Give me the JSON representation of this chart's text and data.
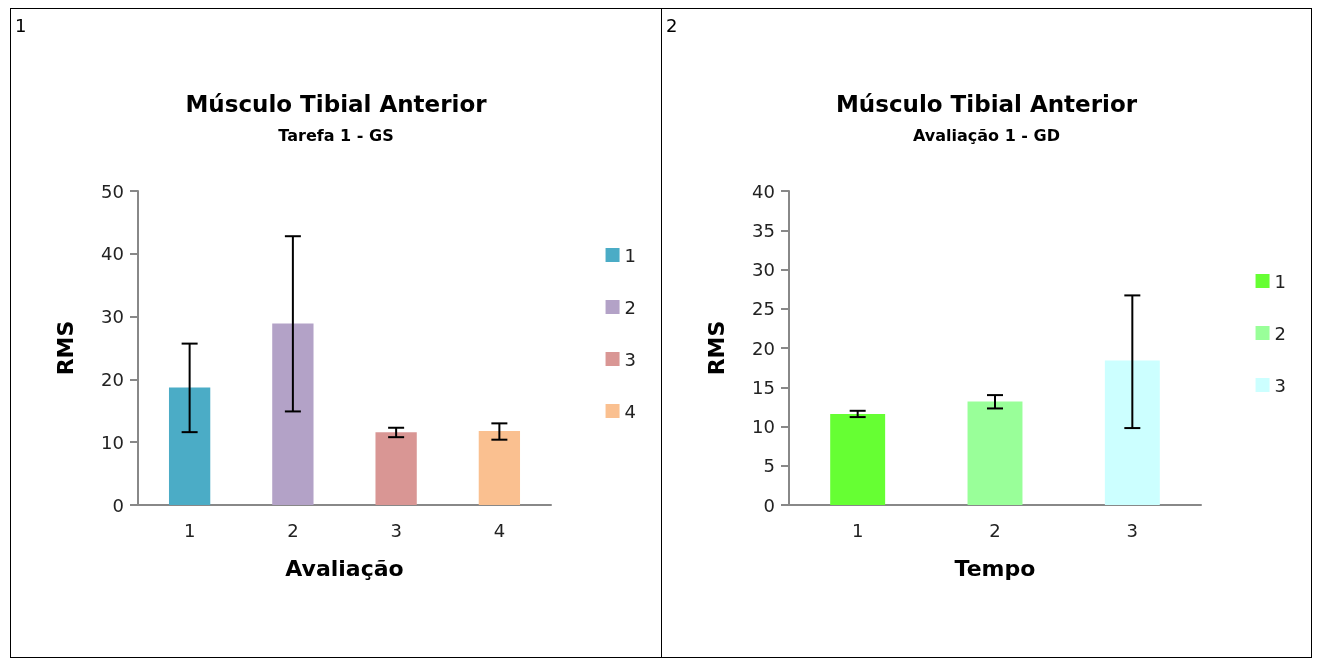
{
  "chart_data": [
    {
      "type": "bar",
      "title": "Músculo Tibial Anterior",
      "subtitle": "Tarefa 1 - GS",
      "xlabel": "Avaliação",
      "ylabel": "RMS",
      "annotations": [
        "1"
      ],
      "categories": [
        "1",
        "2",
        "3",
        "4"
      ],
      "series": [
        {
          "name": "1",
          "color": "#4bacc6",
          "values": [
            18.7,
            null,
            null,
            null
          ],
          "errors": [
            [
              11.6,
              25.7
            ],
            null,
            null,
            null
          ]
        },
        {
          "name": "2",
          "color": "#b3a2c7",
          "values": [
            null,
            28.9,
            null,
            null
          ],
          "errors": [
            null,
            [
              14.9,
              42.8
            ],
            null,
            null
          ]
        },
        {
          "name": "3",
          "color": "#d99694",
          "values": [
            null,
            null,
            11.6,
            null
          ],
          "errors": [
            null,
            null,
            [
              10.8,
              12.3
            ],
            null
          ]
        },
        {
          "name": "4",
          "color": "#fac090",
          "values": [
            null,
            null,
            null,
            11.8
          ],
          "errors": [
            null,
            null,
            null,
            [
              10.4,
              13.0
            ]
          ]
        }
      ],
      "ylim": [
        0,
        50
      ],
      "yticks": [
        0,
        10,
        20,
        30,
        40,
        50
      ],
      "legend": "right"
    },
    {
      "type": "bar",
      "title": "Músculo Tibial Anterior",
      "subtitle": "Avaliação 1 - GD",
      "xlabel": "Tempo",
      "ylabel": "RMS",
      "annotations": [
        "2"
      ],
      "categories": [
        "1",
        "2",
        "3"
      ],
      "series": [
        {
          "name": "1",
          "color": "#66ff33",
          "values": [
            11.6,
            null,
            null
          ],
          "errors": [
            [
              11.2,
              12.0
            ],
            null,
            null
          ]
        },
        {
          "name": "2",
          "color": "#99ff99",
          "values": [
            null,
            13.2,
            null
          ],
          "errors": [
            null,
            [
              12.3,
              14.0
            ],
            null
          ]
        },
        {
          "name": "3",
          "color": "#ccffff",
          "values": [
            null,
            null,
            18.4
          ],
          "errors": [
            null,
            null,
            [
              9.8,
              26.7
            ]
          ]
        }
      ],
      "ylim": [
        0,
        40
      ],
      "yticks": [
        0,
        5,
        10,
        15,
        20,
        25,
        30,
        35,
        40
      ],
      "legend": "right"
    }
  ]
}
